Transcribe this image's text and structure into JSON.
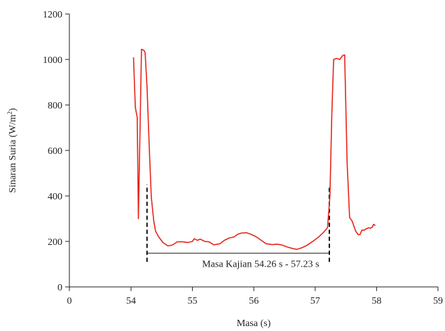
{
  "chart_data": {
    "type": "line",
    "title": "",
    "xlabel": "Masa (s)",
    "ylabel": "Sinaran Suria (W/m²)",
    "ylabel_parts": {
      "base": "Sinaran Suria (W/m",
      "sup": "2",
      "tail": ")"
    },
    "xlim": [
      0,
      59
    ],
    "ylim": [
      0,
      1200
    ],
    "x_axis_break": true,
    "x_ticks": [
      0,
      54,
      55,
      56,
      57,
      58,
      59
    ],
    "x_tick_labels": [
      "0",
      "54",
      "55",
      "56",
      "57",
      "58",
      "59"
    ],
    "y_ticks": [
      0,
      200,
      400,
      600,
      800,
      1000,
      1200
    ],
    "y_tick_labels": [
      "0",
      "200",
      "400",
      "600",
      "800",
      "1000",
      "1200"
    ],
    "grid": false,
    "legend": "none",
    "series": [
      {
        "color": "#e8251d",
        "points": [
          [
            54.04,
            1010
          ],
          [
            54.07,
            790
          ],
          [
            54.1,
            745
          ],
          [
            54.12,
            300
          ],
          [
            54.17,
            1045
          ],
          [
            54.21,
            1040
          ],
          [
            54.23,
            1030
          ],
          [
            54.26,
            880
          ],
          [
            54.3,
            590
          ],
          [
            54.33,
            395
          ],
          [
            54.37,
            290
          ],
          [
            54.4,
            245
          ],
          [
            54.45,
            220
          ],
          [
            54.52,
            195
          ],
          [
            54.6,
            180
          ],
          [
            54.68,
            185
          ],
          [
            54.75,
            198
          ],
          [
            54.85,
            198
          ],
          [
            54.92,
            195
          ],
          [
            55.0,
            200
          ],
          [
            55.03,
            212
          ],
          [
            55.08,
            205
          ],
          [
            55.13,
            210
          ],
          [
            55.2,
            200
          ],
          [
            55.27,
            198
          ],
          [
            55.35,
            185
          ],
          [
            55.45,
            190
          ],
          [
            55.52,
            205
          ],
          [
            55.6,
            215
          ],
          [
            55.68,
            220
          ],
          [
            55.74,
            232
          ],
          [
            55.8,
            237
          ],
          [
            55.88,
            238
          ],
          [
            55.95,
            232
          ],
          [
            56.03,
            222
          ],
          [
            56.12,
            205
          ],
          [
            56.2,
            190
          ],
          [
            56.3,
            186
          ],
          [
            56.38,
            188
          ],
          [
            56.45,
            185
          ],
          [
            56.55,
            175
          ],
          [
            56.62,
            170
          ],
          [
            56.7,
            165
          ],
          [
            56.78,
            172
          ],
          [
            56.86,
            182
          ],
          [
            56.95,
            198
          ],
          [
            57.05,
            218
          ],
          [
            57.13,
            238
          ],
          [
            57.2,
            260
          ],
          [
            57.24,
            400
          ],
          [
            57.27,
            760
          ],
          [
            57.3,
            1000
          ],
          [
            57.35,
            1005
          ],
          [
            57.4,
            1000
          ],
          [
            57.45,
            1018
          ],
          [
            57.48,
            1020
          ],
          [
            57.52,
            540
          ],
          [
            57.56,
            305
          ],
          [
            57.6,
            290
          ],
          [
            57.66,
            245
          ],
          [
            57.7,
            230
          ],
          [
            57.73,
            230
          ],
          [
            57.76,
            250
          ],
          [
            57.8,
            250
          ],
          [
            57.83,
            255
          ],
          [
            57.87,
            260
          ],
          [
            57.9,
            258
          ],
          [
            57.93,
            263
          ],
          [
            57.95,
            275
          ],
          [
            57.98,
            270
          ]
        ]
      }
    ],
    "markers": [
      {
        "x": 54.26,
        "y_from": 110,
        "y_to": 450,
        "style": "dashed"
      },
      {
        "x": 57.23,
        "y_from": 110,
        "y_to": 440,
        "style": "dashed"
      }
    ],
    "span_line": {
      "x_from": 54.26,
      "x_to": 57.23,
      "y": 148
    },
    "annotations": [
      {
        "text": "Masa Kajian 54.26 s - 57.23 s",
        "x": 56.11,
        "y": 88
      }
    ]
  }
}
